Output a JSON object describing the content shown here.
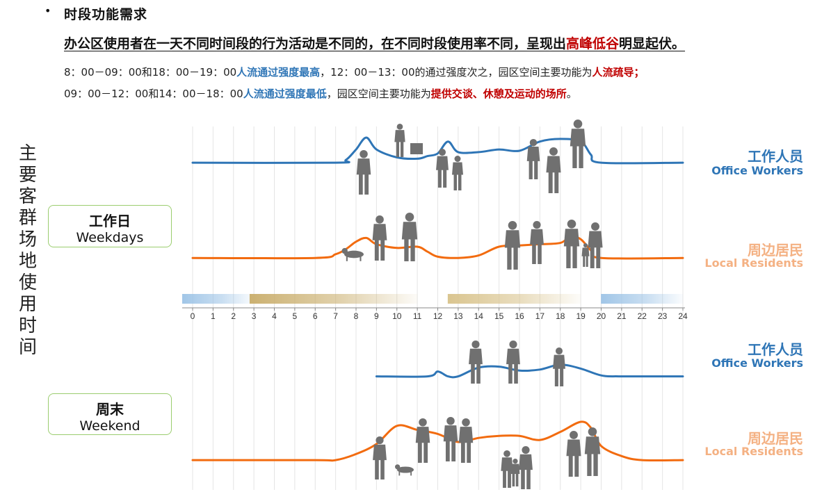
{
  "header": {
    "bullet": "•",
    "title": "时段功能需求",
    "headline_pre": "办公区使用者在一天不同时间段的行为活动是不同的，在不同时段使用率不同，呈现出",
    "headline_highlight": "高峰低谷",
    "headline_post": "明显起伏。",
    "desc1_a": "8：00－09：00和18：00－19：00",
    "desc1_b": "人流通过强度最高",
    "desc1_c": "，12：00－13：00的通过强度次之，园区空间主要功能为",
    "desc1_d": "人流疏导；",
    "desc2_a": "09：00－12：00和14：00－18：00",
    "desc2_b": "人流通过强度最低",
    "desc2_c": "，园区空间主要功能为",
    "desc2_d": "提供交谈、休憩及运动的场所",
    "desc2_e": "。"
  },
  "side_title": [
    "主",
    "要",
    "客",
    "群",
    "场",
    "地",
    "使",
    "用",
    "时",
    "间"
  ],
  "weekday": {
    "cn": "工作日",
    "en": "Weekdays"
  },
  "weekend": {
    "cn": "周末",
    "en": "Weekend"
  },
  "legend": {
    "workers_cn": "工作人员",
    "workers_en": "Office Workers",
    "residents_cn": "周边居民",
    "residents_en": "Local Residents"
  },
  "colors": {
    "workers_line": "#2e75b6",
    "residents_line": "#f26b0f",
    "red_text": "#c00000",
    "blue_text": "#2e75b6",
    "silhouette": "#707070",
    "box_border": "#9acd6e"
  },
  "chart_data": {
    "type": "line",
    "x_ticks": [
      0,
      1,
      2,
      3,
      4,
      5,
      6,
      7,
      8,
      9,
      10,
      11,
      12,
      13,
      14,
      15,
      16,
      17,
      18,
      19,
      20,
      21,
      22,
      23,
      24
    ],
    "xlim": [
      0,
      24
    ],
    "panels": [
      {
        "name": "工作日",
        "series": [
          {
            "name": "工作人员",
            "points": [
              [
                0,
                0.05
              ],
              [
                7,
                0.05
              ],
              [
                7.5,
                0.15
              ],
              [
                8,
                0.55
              ],
              [
                8.5,
                1.0
              ],
              [
                9,
                0.55
              ],
              [
                10,
                0.25
              ],
              [
                11,
                0.2
              ],
              [
                11.5,
                0.3
              ],
              [
                12,
                0.4
              ],
              [
                12.5,
                0.85
              ],
              [
                13,
                0.45
              ],
              [
                14,
                0.45
              ],
              [
                15,
                0.55
              ],
              [
                16,
                0.5
              ],
              [
                17,
                0.85
              ],
              [
                18,
                0.95
              ],
              [
                19,
                0.85
              ],
              [
                19.5,
                0.35
              ],
              [
                20,
                0.05
              ],
              [
                24,
                0.05
              ]
            ]
          },
          {
            "name": "周边居民",
            "points": [
              [
                0,
                0.05
              ],
              [
                6,
                0.05
              ],
              [
                7,
                0.2
              ],
              [
                7.5,
                0.4
              ],
              [
                8,
                0.7
              ],
              [
                8.5,
                0.85
              ],
              [
                9,
                0.6
              ],
              [
                10,
                0.45
              ],
              [
                11,
                0.5
              ],
              [
                11.5,
                0.3
              ],
              [
                12,
                0.1
              ],
              [
                13,
                0.05
              ],
              [
                14,
                0.15
              ],
              [
                15,
                0.5
              ],
              [
                16,
                0.55
              ],
              [
                17,
                0.6
              ],
              [
                18,
                0.65
              ],
              [
                18.5,
                0.9
              ],
              [
                19,
                0.8
              ],
              [
                19.5,
                0.35
              ],
              [
                20,
                0.05
              ],
              [
                24,
                0.05
              ]
            ]
          }
        ]
      },
      {
        "name": "周末",
        "series": [
          {
            "name": "工作人员",
            "points": [
              [
                9,
                0.05
              ],
              [
                11.5,
                0.05
              ],
              [
                12,
                0.3
              ],
              [
                12.5,
                0.05
              ],
              [
                13,
                0.05
              ],
              [
                14,
                0.5
              ],
              [
                15,
                0.55
              ],
              [
                16,
                0.35
              ],
              [
                17,
                0.4
              ],
              [
                18,
                0.65
              ],
              [
                19,
                0.45
              ],
              [
                20,
                0.1
              ],
              [
                21,
                0.05
              ],
              [
                24,
                0.05
              ]
            ]
          },
          {
            "name": "周边居民",
            "points": [
              [
                0,
                0.05
              ],
              [
                6,
                0.05
              ],
              [
                7,
                0.05
              ],
              [
                8,
                0.2
              ],
              [
                9,
                0.45
              ],
              [
                10,
                0.9
              ],
              [
                11,
                0.8
              ],
              [
                12,
                0.7
              ],
              [
                13,
                0.5
              ],
              [
                14,
                0.6
              ],
              [
                15,
                0.65
              ],
              [
                16,
                0.65
              ],
              [
                17,
                0.55
              ],
              [
                18,
                0.75
              ],
              [
                19,
                1.0
              ],
              [
                19.5,
                0.85
              ],
              [
                20,
                0.4
              ],
              [
                21,
                0.15
              ],
              [
                22,
                0.05
              ],
              [
                24,
                0.05
              ]
            ]
          }
        ]
      }
    ],
    "highlight_bands": [
      {
        "from": 0,
        "to": 3,
        "color": "#9cc3e6"
      },
      {
        "from": 3.3,
        "to": 11,
        "color": "#c9ad6a"
      },
      {
        "from": 13,
        "to": 19,
        "color": "#d8c28a"
      },
      {
        "from": 20.5,
        "to": 24,
        "color": "#9cc3e6"
      }
    ]
  }
}
